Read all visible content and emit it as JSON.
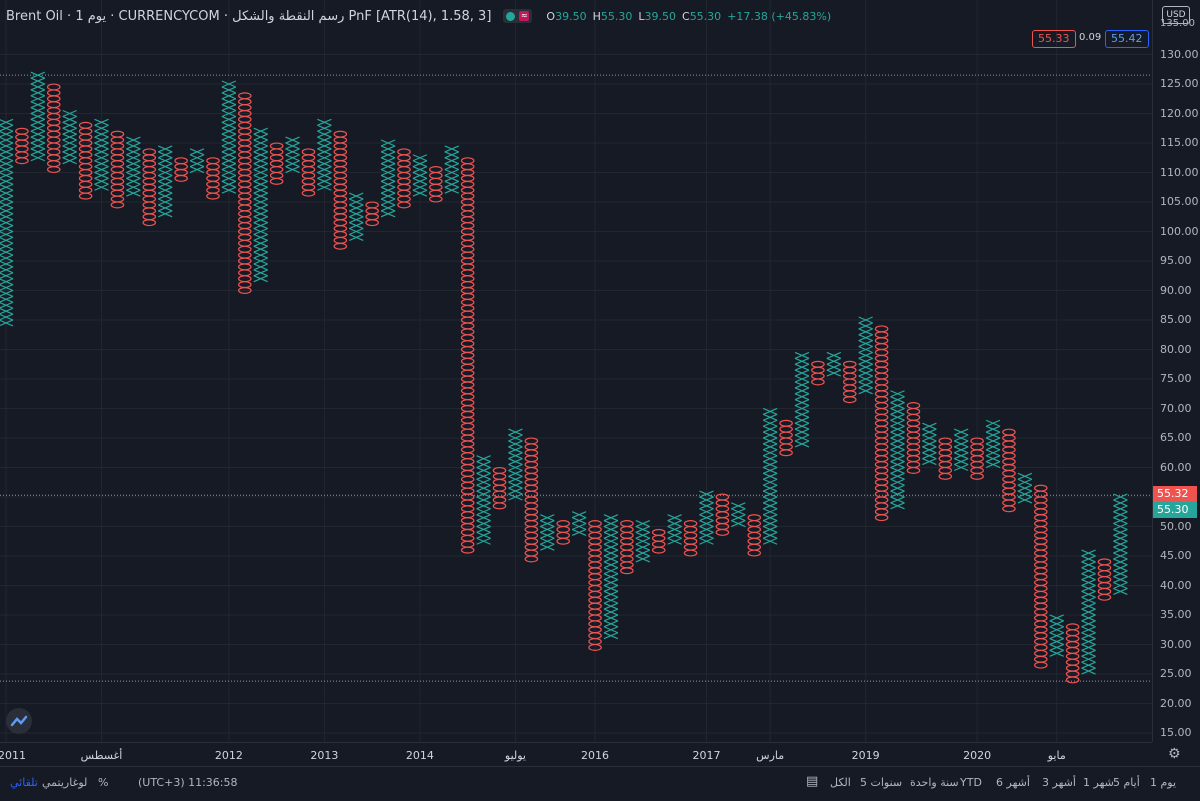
{
  "legend": {
    "title": "Brent Oil · يوم 1 · CURRENCYCOM · رسم النقطة والشكل PnF [ATR(14), 1.58, 3]",
    "o_label": "O",
    "o": "39.50",
    "h_label": "H",
    "h": "55.30",
    "l_label": "L",
    "l": "39.50",
    "c_label": "C",
    "c": "55.30",
    "change": "+17.38 (+45.83%)"
  },
  "bid_ask": {
    "sell": "55.33",
    "spread": "0.09",
    "buy": "55.42"
  },
  "axis": {
    "currency": "USD",
    "top_label": "135.00",
    "price_tag_red": "55.32",
    "price_tag_green": "55.30"
  },
  "bottom_bar": {
    "periods": [
      "يوم 1",
      "أيام 5",
      "شهر 1",
      "أشهر 3",
      "أشهر 6",
      "YTD",
      "سنة واحدة",
      "سنوات 5",
      "الكل"
    ],
    "time": "(UTC+3) 11:36:58",
    "percent": "%",
    "log": "لوغاريتمي",
    "auto": "تلقائي"
  },
  "colors": {
    "x": "#26a69a",
    "o": "#ef5350",
    "bg": "#161a25",
    "grid": "#242733"
  },
  "chart_data": {
    "type": "point-and-figure",
    "title": "Brent Oil · يوم 1 · CURRENCYCOM · رسم النقطة والشكل PnF [ATR(14), 1.58, 3]",
    "box_size": 1.58,
    "reversal": 3,
    "ylim": [
      15,
      135
    ],
    "y_ticks": [
      15,
      20,
      25,
      30,
      35,
      40,
      45,
      50,
      55,
      60,
      65,
      70,
      75,
      80,
      85,
      90,
      95,
      100,
      105,
      110,
      115,
      120,
      125,
      130
    ],
    "x_ticks": [
      "2011",
      "أغسطس",
      "2012",
      "2013",
      "2014",
      "يوليو",
      "2016",
      "2017",
      "مارس",
      "2019",
      "2020",
      "مايو"
    ],
    "x_tick_columns": [
      0,
      6,
      14,
      20,
      26,
      32,
      37,
      44,
      48,
      54,
      61,
      66
    ],
    "columns": [
      {
        "t": "x",
        "lo": 84.5,
        "hi": 119.0
      },
      {
        "t": "o",
        "lo": 111.5,
        "hi": 117.5
      },
      {
        "t": "x",
        "lo": 112.5,
        "hi": 127.0
      },
      {
        "t": "o",
        "lo": 110.5,
        "hi": 125.0
      },
      {
        "t": "x",
        "lo": 111.5,
        "hi": 120.5
      },
      {
        "t": "o",
        "lo": 105.5,
        "hi": 118.5
      },
      {
        "t": "x",
        "lo": 107.0,
        "hi": 119.0
      },
      {
        "t": "o",
        "lo": 104.0,
        "hi": 117.0
      },
      {
        "t": "x",
        "lo": 106.0,
        "hi": 116.0
      },
      {
        "t": "o",
        "lo": 101.0,
        "hi": 114.0
      },
      {
        "t": "x",
        "lo": 103.0,
        "hi": 114.5
      },
      {
        "t": "o",
        "lo": 108.5,
        "hi": 112.5
      },
      {
        "t": "x",
        "lo": 110.0,
        "hi": 114.0
      },
      {
        "t": "o",
        "lo": 105.5,
        "hi": 112.5
      },
      {
        "t": "x",
        "lo": 107.0,
        "hi": 125.5
      },
      {
        "t": "o",
        "lo": 89.5,
        "hi": 123.5
      },
      {
        "t": "x",
        "lo": 91.5,
        "hi": 117.5
      },
      {
        "t": "o",
        "lo": 108.0,
        "hi": 115.0
      },
      {
        "t": "x",
        "lo": 110.0,
        "hi": 116.0
      },
      {
        "t": "o",
        "lo": 106.0,
        "hi": 114.0
      },
      {
        "t": "x",
        "lo": 107.0,
        "hi": 119.0
      },
      {
        "t": "o",
        "lo": 97.5,
        "hi": 117.0
      },
      {
        "t": "x",
        "lo": 99.0,
        "hi": 106.5
      },
      {
        "t": "o",
        "lo": 101.0,
        "hi": 105.0
      },
      {
        "t": "x",
        "lo": 102.5,
        "hi": 115.5
      },
      {
        "t": "o",
        "lo": 104.0,
        "hi": 114.0
      },
      {
        "t": "x",
        "lo": 106.0,
        "hi": 113.0
      },
      {
        "t": "o",
        "lo": 105.5,
        "hi": 111.0
      },
      {
        "t": "x",
        "lo": 107.0,
        "hi": 114.5
      },
      {
        "t": "o",
        "lo": 45.5,
        "hi": 112.5
      },
      {
        "t": "x",
        "lo": 47.0,
        "hi": 62.0
      },
      {
        "t": "o",
        "lo": 53.0,
        "hi": 60.0
      },
      {
        "t": "x",
        "lo": 54.5,
        "hi": 66.5
      },
      {
        "t": "o",
        "lo": 44.0,
        "hi": 65.0
      },
      {
        "t": "x",
        "lo": 46.0,
        "hi": 52.0
      },
      {
        "t": "o",
        "lo": 47.0,
        "hi": 51.0
      },
      {
        "t": "x",
        "lo": 49.0,
        "hi": 52.5
      },
      {
        "t": "o",
        "lo": 29.5,
        "hi": 51.0
      },
      {
        "t": "x",
        "lo": 31.0,
        "hi": 52.0
      },
      {
        "t": "o",
        "lo": 42.5,
        "hi": 51.0
      },
      {
        "t": "x",
        "lo": 44.0,
        "hi": 51.0
      },
      {
        "t": "o",
        "lo": 45.5,
        "hi": 49.5
      },
      {
        "t": "x",
        "lo": 47.0,
        "hi": 52.0
      },
      {
        "t": "o",
        "lo": 45.5,
        "hi": 51.0
      },
      {
        "t": "x",
        "lo": 47.0,
        "hi": 56.0
      },
      {
        "t": "o",
        "lo": 48.5,
        "hi": 55.5
      },
      {
        "t": "x",
        "lo": 50.0,
        "hi": 54.0
      },
      {
        "t": "o",
        "lo": 45.5,
        "hi": 52.0
      },
      {
        "t": "x",
        "lo": 47.0,
        "hi": 70.0
      },
      {
        "t": "o",
        "lo": 62.0,
        "hi": 68.0
      },
      {
        "t": "x",
        "lo": 64.0,
        "hi": 79.5
      },
      {
        "t": "o",
        "lo": 74.0,
        "hi": 78.0
      },
      {
        "t": "x",
        "lo": 75.5,
        "hi": 79.5
      },
      {
        "t": "o",
        "lo": 71.0,
        "hi": 78.0
      },
      {
        "t": "x",
        "lo": 72.5,
        "hi": 85.5
      },
      {
        "t": "o",
        "lo": 51.5,
        "hi": 84.0
      },
      {
        "t": "x",
        "lo": 53.0,
        "hi": 73.0
      },
      {
        "t": "o",
        "lo": 59.5,
        "hi": 71.0
      },
      {
        "t": "x",
        "lo": 61.0,
        "hi": 67.5
      },
      {
        "t": "o",
        "lo": 58.5,
        "hi": 65.0
      },
      {
        "t": "x",
        "lo": 60.0,
        "hi": 66.5
      },
      {
        "t": "o",
        "lo": 58.5,
        "hi": 65.0
      },
      {
        "t": "x",
        "lo": 60.0,
        "hi": 68.0
      },
      {
        "t": "o",
        "lo": 53.0,
        "hi": 66.5
      },
      {
        "t": "x",
        "lo": 54.5,
        "hi": 59.0
      },
      {
        "t": "o",
        "lo": 26.5,
        "hi": 57.0
      },
      {
        "t": "x",
        "lo": 28.0,
        "hi": 35.0
      },
      {
        "t": "o",
        "lo": 23.5,
        "hi": 33.5
      },
      {
        "t": "x",
        "lo": 25.0,
        "hi": 46.0
      },
      {
        "t": "o",
        "lo": 37.5,
        "hi": 44.5
      },
      {
        "t": "x",
        "lo": 39.0,
        "hi": 55.5
      }
    ],
    "horizontal_lines": [
      126.5,
      55.3,
      23.8
    ]
  }
}
